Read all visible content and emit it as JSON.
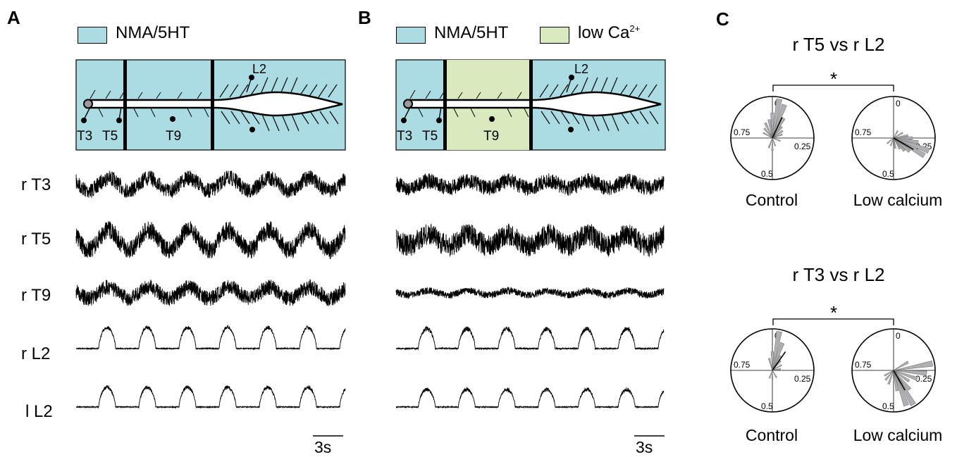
{
  "panels": {
    "a": {
      "label": "A",
      "legend": "NMA/5HT"
    },
    "b": {
      "label": "B",
      "legend1": "NMA/5HT",
      "legend2": "low Ca",
      "legend2_sup": "2+"
    },
    "c": {
      "label": "C"
    }
  },
  "diagram": {
    "labels": [
      "L2",
      "T3",
      "T5",
      "T9"
    ]
  },
  "traces": {
    "row_labels": [
      "r T3",
      "r T5",
      "r T9",
      "r L2",
      "l L2"
    ],
    "scale_bar": "3s"
  },
  "polar": {
    "ticks": [
      "0",
      "0.25",
      "0.5",
      "0.75"
    ],
    "significance": "*",
    "plots": [
      {
        "title": "r T5 vs r L2",
        "left_label": "Control",
        "right_label": "Low calcium"
      },
      {
        "title": "r T3 vs r L2",
        "left_label": "Control",
        "right_label": "Low calcium"
      }
    ]
  },
  "colors": {
    "nma_5ht": "#acdce3",
    "low_ca": "#d9ebbe",
    "rose": "#b0b0b4"
  }
}
